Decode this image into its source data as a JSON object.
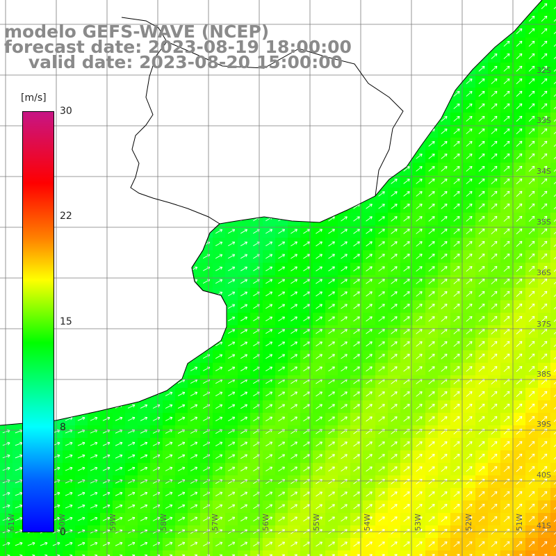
{
  "title": {
    "line1": "modelo GEFS-WAVE (NCEP)",
    "line2": "forecast date: 2023-08-19 18:00:00",
    "line3": "    valid date: 2023-08-20 15:00:00"
  },
  "colorbar": {
    "unit": "[m/s]",
    "ticks": [
      "30",
      "22",
      "15",
      "8",
      "0"
    ],
    "tick_values": [
      30,
      22,
      15,
      8,
      0
    ],
    "colors": [
      "#0000ff",
      "#0060ff",
      "#00ffff",
      "#00ff00",
      "#ffff00",
      "#ff8000",
      "#ff0000",
      "#c71585"
    ]
  },
  "lat_labels": [
    "32S",
    "33S",
    "34S",
    "35S",
    "36S",
    "37S",
    "38S",
    "39S",
    "40S",
    "41S"
  ],
  "lon_labels": [
    "61W",
    "60W",
    "59W",
    "58W",
    "57W",
    "56W",
    "55W",
    "54W",
    "53W",
    "52W",
    "51W"
  ],
  "field": {
    "variable": "wind speed",
    "direction": "arrows point toward north-east / east",
    "min_ms": 8,
    "max_ms": 21
  }
}
